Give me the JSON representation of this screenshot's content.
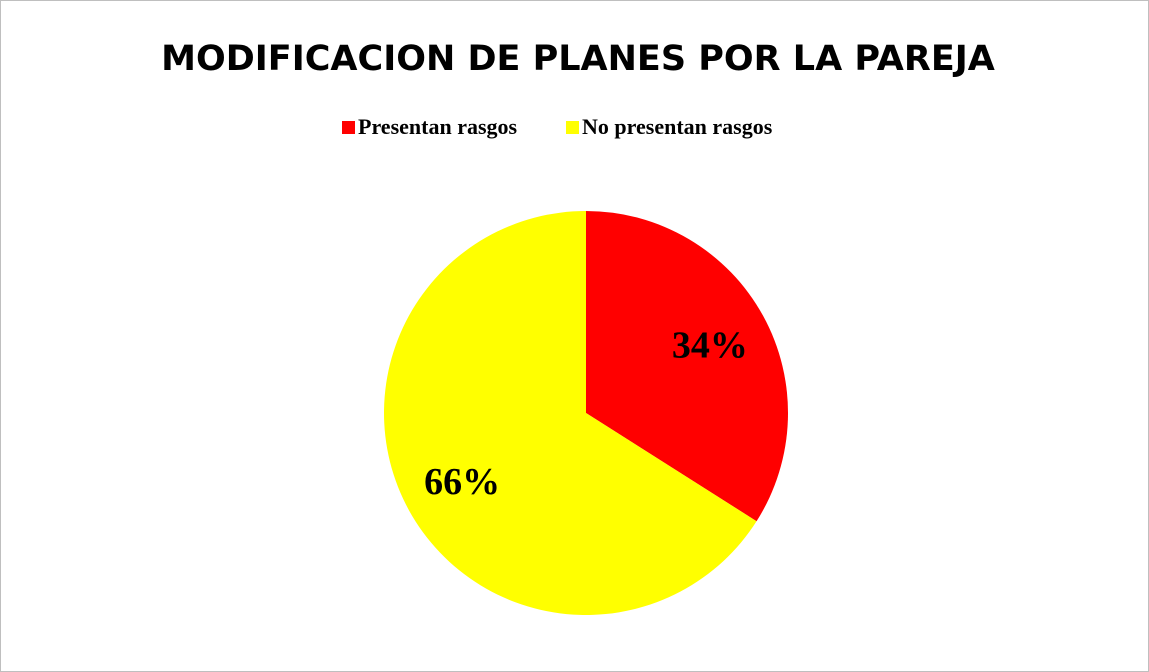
{
  "chart_data": {
    "type": "pie",
    "title": "MODIFICACION DE PLANES POR LA PAREJA",
    "categories": [
      "Presentan rasgos",
      "No presentan rasgos"
    ],
    "values": [
      34,
      66
    ],
    "value_labels": [
      "34%",
      "66%"
    ],
    "colors": [
      "#ff0000",
      "#ffff00"
    ],
    "legend": "top"
  }
}
